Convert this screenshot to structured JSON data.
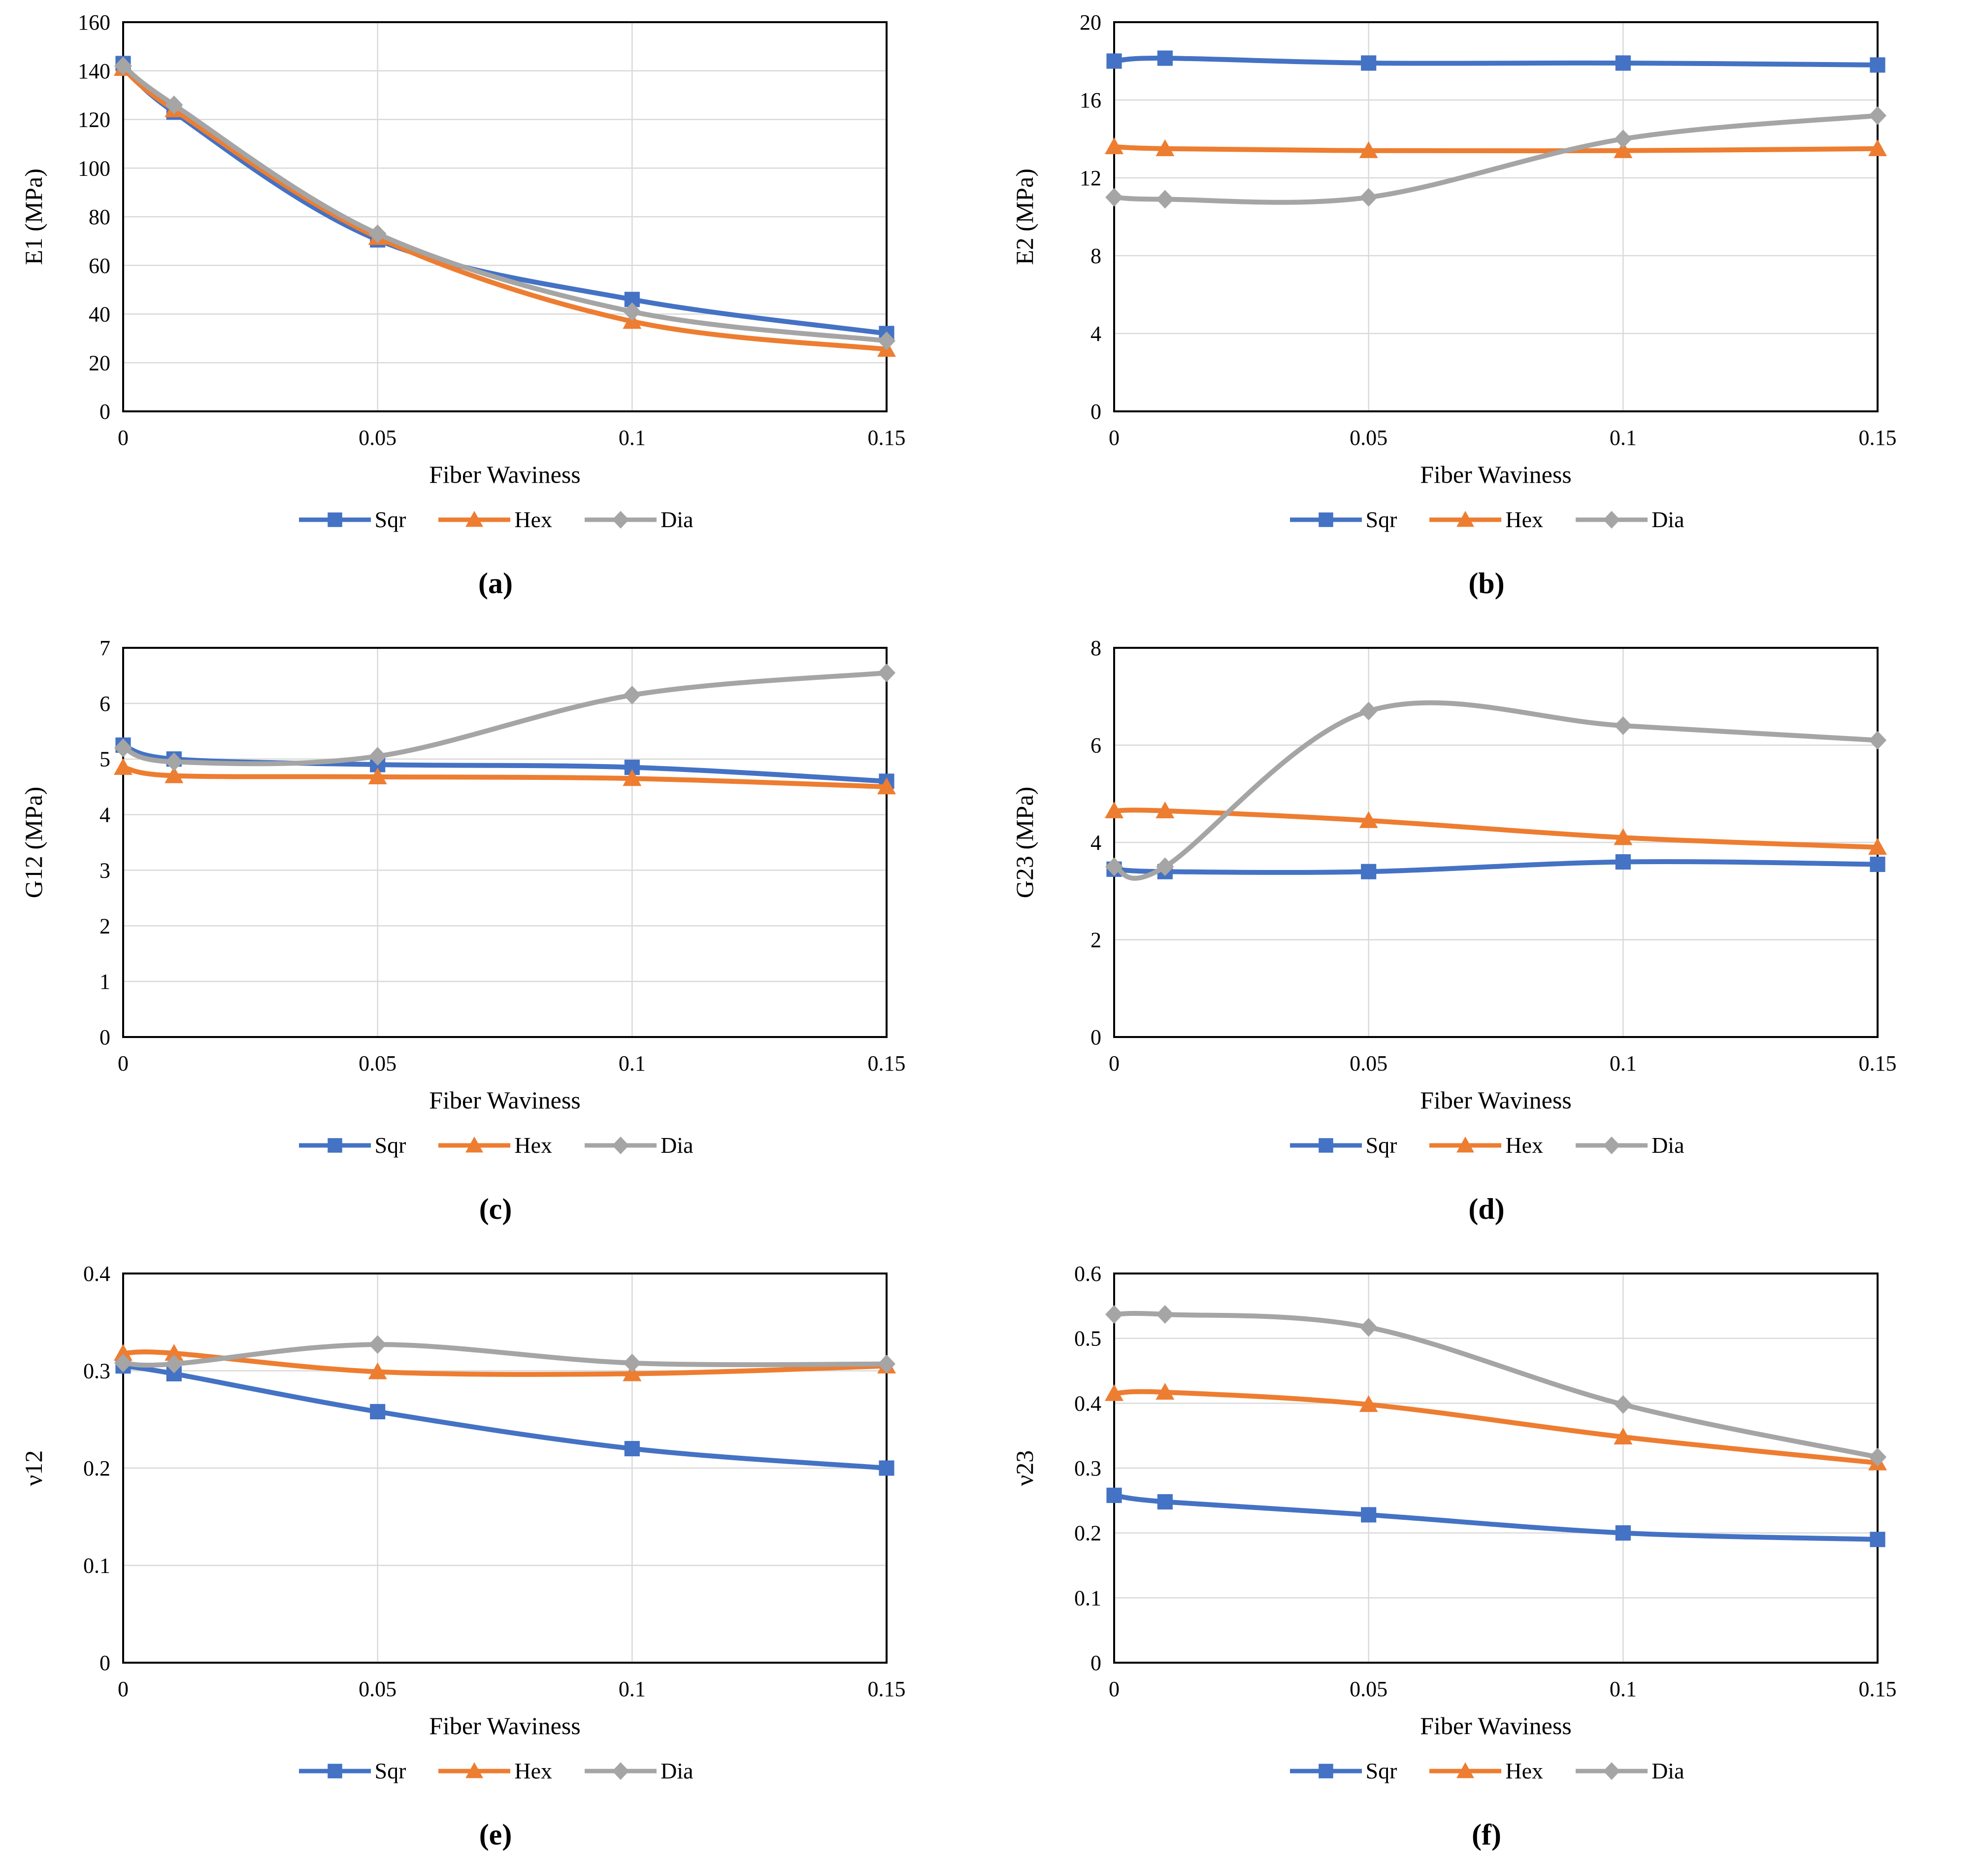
{
  "figure": {
    "xlabel_shared": "Fiber Waviness",
    "legend_entries": [
      "Sqr",
      "Hex",
      "Dia"
    ]
  },
  "series_styles": [
    {
      "name": "Sqr",
      "color": "#4472C4",
      "marker": "square"
    },
    {
      "name": "Hex",
      "color": "#ED7D31",
      "marker": "triangle"
    },
    {
      "name": "Dia",
      "color": "#A5A5A5",
      "marker": "diamond"
    }
  ],
  "grid_color": "#D9D9D9",
  "axis_color": "#000000",
  "chart_data": [
    {
      "id": "a",
      "type": "line",
      "caption": "(a)",
      "xlabel": "Fiber Waviness",
      "ylabel": "E1 (MPa)",
      "x": [
        0,
        0.01,
        0.05,
        0.1,
        0.15
      ],
      "xlim": [
        0,
        0.15
      ],
      "ylim": [
        0,
        160
      ],
      "xtick_values": [
        0,
        0.05,
        0.1,
        0.15
      ],
      "xtick_labels": [
        "0",
        "0.05",
        "0.1",
        "0.15"
      ],
      "ytick_values": [
        0,
        20,
        40,
        60,
        80,
        100,
        120,
        140,
        160
      ],
      "ytick_labels": [
        "0",
        "20",
        "40",
        "60",
        "80",
        "100",
        "120",
        "140",
        "160"
      ],
      "grid": true,
      "legend_position": "bottom",
      "series": [
        {
          "name": "Sqr",
          "values": [
            143,
            123,
            70.5,
            46,
            32
          ]
        },
        {
          "name": "Hex",
          "values": [
            141,
            124,
            71.5,
            37,
            25.5
          ]
        },
        {
          "name": "Dia",
          "values": [
            142,
            126,
            73,
            41,
            29
          ]
        }
      ]
    },
    {
      "id": "b",
      "type": "line",
      "caption": "(b)",
      "xlabel": "Fiber Waviness",
      "ylabel": "E2 (MPa)",
      "x": [
        0,
        0.01,
        0.05,
        0.1,
        0.15
      ],
      "xlim": [
        0,
        0.15
      ],
      "ylim": [
        0,
        20
      ],
      "xtick_values": [
        0,
        0.05,
        0.1,
        0.15
      ],
      "xtick_labels": [
        "0",
        "0.05",
        "0.1",
        "0.15"
      ],
      "ytick_values": [
        0,
        4,
        8,
        12,
        16,
        20
      ],
      "ytick_labels": [
        "0",
        "4",
        "8",
        "12",
        "16",
        "20"
      ],
      "grid": true,
      "legend_position": "bottom",
      "series": [
        {
          "name": "Sqr",
          "values": [
            18.0,
            18.15,
            17.9,
            17.9,
            17.8
          ]
        },
        {
          "name": "Hex",
          "values": [
            13.6,
            13.5,
            13.4,
            13.4,
            13.5
          ]
        },
        {
          "name": "Dia",
          "values": [
            11.0,
            10.9,
            11.0,
            14.0,
            15.2
          ]
        }
      ]
    },
    {
      "id": "c",
      "type": "line",
      "caption": "(c)",
      "xlabel": "Fiber Waviness",
      "ylabel": "G12 (MPa)",
      "x": [
        0,
        0.01,
        0.05,
        0.1,
        0.15
      ],
      "xlim": [
        0,
        0.15
      ],
      "ylim": [
        0,
        7
      ],
      "xtick_values": [
        0,
        0.05,
        0.1,
        0.15
      ],
      "xtick_labels": [
        "0",
        "0.05",
        "0.1",
        "0.15"
      ],
      "ytick_values": [
        0,
        1,
        2,
        3,
        4,
        5,
        6,
        7
      ],
      "ytick_labels": [
        "0",
        "1",
        "2",
        "3",
        "4",
        "5",
        "6",
        "7"
      ],
      "grid": true,
      "legend_position": "bottom",
      "series": [
        {
          "name": "Sqr",
          "values": [
            5.25,
            5.0,
            4.9,
            4.85,
            4.6
          ]
        },
        {
          "name": "Hex",
          "values": [
            4.85,
            4.7,
            4.68,
            4.65,
            4.5
          ]
        },
        {
          "name": "Dia",
          "values": [
            5.2,
            4.95,
            5.05,
            6.15,
            6.55
          ]
        }
      ]
    },
    {
      "id": "d",
      "type": "line",
      "caption": "(d)",
      "xlabel": "Fiber Waviness",
      "ylabel": "G23 (MPa)",
      "x": [
        0,
        0.01,
        0.05,
        0.1,
        0.15
      ],
      "xlim": [
        0,
        0.15
      ],
      "ylim": [
        0,
        8
      ],
      "xtick_values": [
        0,
        0.05,
        0.1,
        0.15
      ],
      "xtick_labels": [
        "0",
        "0.05",
        "0.1",
        "0.15"
      ],
      "ytick_values": [
        0,
        2,
        4,
        6,
        8
      ],
      "ytick_labels": [
        "0",
        "2",
        "4",
        "6",
        "8"
      ],
      "grid": true,
      "legend_position": "bottom",
      "series": [
        {
          "name": "Sqr",
          "values": [
            3.45,
            3.4,
            3.4,
            3.6,
            3.55
          ]
        },
        {
          "name": "Hex",
          "values": [
            4.65,
            4.65,
            4.45,
            4.1,
            3.9
          ]
        },
        {
          "name": "Dia",
          "values": [
            3.5,
            3.5,
            6.7,
            6.4,
            6.1
          ]
        }
      ]
    },
    {
      "id": "e",
      "type": "line",
      "caption": "(e)",
      "xlabel": "Fiber Waviness",
      "ylabel": "ν12",
      "x": [
        0,
        0.01,
        0.05,
        0.1,
        0.15
      ],
      "xlim": [
        0,
        0.15
      ],
      "ylim": [
        0,
        0.4
      ],
      "xtick_values": [
        0,
        0.05,
        0.1,
        0.15
      ],
      "xtick_labels": [
        "0",
        "0.05",
        "0.1",
        "0.15"
      ],
      "ytick_values": [
        0,
        0.1,
        0.2,
        0.3,
        0.4
      ],
      "ytick_labels": [
        "0",
        "0.1",
        "0.2",
        "0.3",
        "0.4"
      ],
      "grid": true,
      "legend_position": "bottom",
      "series": [
        {
          "name": "Sqr",
          "values": [
            0.305,
            0.297,
            0.258,
            0.22,
            0.2
          ]
        },
        {
          "name": "Hex",
          "values": [
            0.318,
            0.318,
            0.299,
            0.297,
            0.305
          ]
        },
        {
          "name": "Dia",
          "values": [
            0.308,
            0.307,
            0.327,
            0.308,
            0.307
          ]
        }
      ]
    },
    {
      "id": "f",
      "type": "line",
      "caption": "(f)",
      "xlabel": "Fiber Waviness",
      "ylabel": "ν23",
      "x": [
        0,
        0.01,
        0.05,
        0.1,
        0.15
      ],
      "xlim": [
        0,
        0.15
      ],
      "ylim": [
        0,
        0.6
      ],
      "xtick_values": [
        0,
        0.05,
        0.1,
        0.15
      ],
      "xtick_labels": [
        "0",
        "0.05",
        "0.1",
        "0.15"
      ],
      "ytick_values": [
        0,
        0.1,
        0.2,
        0.3,
        0.4,
        0.5,
        0.6
      ],
      "ytick_labels": [
        "0",
        "0.1",
        "0.2",
        "0.3",
        "0.4",
        "0.5",
        "0.6"
      ],
      "grid": true,
      "legend_position": "bottom",
      "series": [
        {
          "name": "Sqr",
          "values": [
            0.258,
            0.248,
            0.228,
            0.2,
            0.19
          ]
        },
        {
          "name": "Hex",
          "values": [
            0.415,
            0.417,
            0.398,
            0.348,
            0.308
          ]
        },
        {
          "name": "Dia",
          "values": [
            0.537,
            0.537,
            0.517,
            0.398,
            0.317
          ]
        }
      ]
    }
  ]
}
